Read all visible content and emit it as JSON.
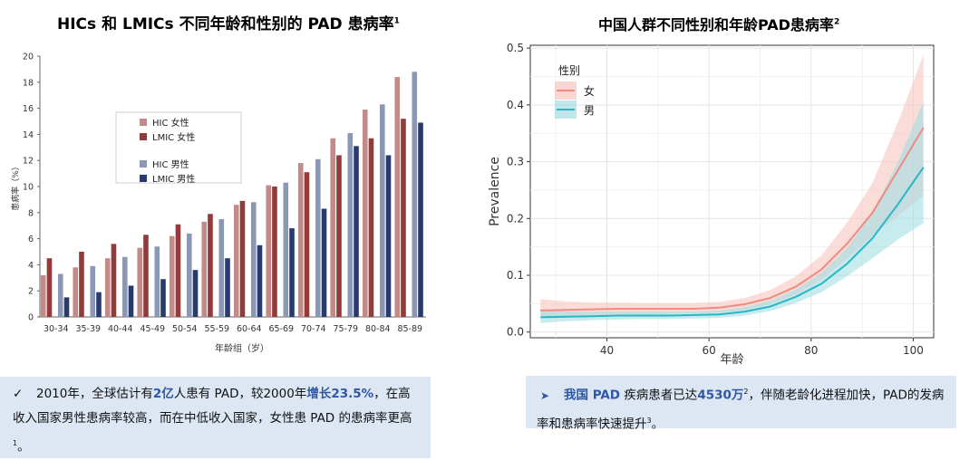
{
  "left_title": "HICs 和 LMICs 不同年龄和性别的 PAD 患病率",
  "left_title_sup": "1",
  "right_title": "中国人群不同性别和年龄PAD患病率",
  "right_title_sup": "2",
  "colors": {
    "hic_female": "#c48a87",
    "lmic_female": "#923b3a",
    "hic_male": "#8a97b5",
    "lmic_male": "#283b6e",
    "female_line": "#f08a82",
    "female_band": "#f6c4bf",
    "male_line": "#27b7c4",
    "male_band": "#a4dde3",
    "note_bg": "#dde7f4",
    "highlight": "#2e57a4"
  },
  "chart_data": [
    {
      "type": "bar",
      "xlabel": "年龄组（岁）",
      "ylabel": "患病率（%）",
      "ylim": [
        0,
        20
      ],
      "yticks": [
        "0",
        "2",
        "4",
        "6",
        "8",
        "10",
        "12",
        "14",
        "16",
        "18",
        "20"
      ],
      "legend_position": "center-left",
      "categories": [
        "30-34",
        "35-39",
        "40-44",
        "45-49",
        "50-54",
        "55-59",
        "60-64",
        "65-69",
        "70-74",
        "75-79",
        "80-84",
        "85-89"
      ],
      "series": [
        {
          "name": "HIC 女性",
          "color": "#c48a87",
          "values": [
            3.2,
            3.8,
            4.5,
            5.3,
            6.2,
            7.3,
            8.6,
            10.1,
            11.8,
            13.7,
            15.9,
            18.4
          ]
        },
        {
          "name": "LMIC 女性",
          "color": "#923b3a",
          "values": [
            4.5,
            5.0,
            5.6,
            6.3,
            7.1,
            7.9,
            8.9,
            10.0,
            11.1,
            12.4,
            13.7,
            15.2
          ]
        },
        {
          "name": "HIC 男性",
          "color": "#8a97b5",
          "values": [
            3.3,
            3.9,
            4.6,
            5.4,
            6.4,
            7.5,
            8.8,
            10.3,
            12.1,
            14.1,
            16.3,
            18.8
          ]
        },
        {
          "name": "LMIC 男性",
          "color": "#283b6e",
          "values": [
            1.5,
            1.9,
            2.4,
            2.9,
            3.6,
            4.5,
            5.5,
            6.8,
            8.3,
            13.1,
            12.4,
            14.9
          ]
        }
      ]
    },
    {
      "type": "line",
      "xlabel": "年龄",
      "ylabel": "Prevalence",
      "xlim": [
        25,
        104
      ],
      "ylim": [
        -0.01,
        0.505
      ],
      "xticks": [
        "40",
        "60",
        "80",
        "100"
      ],
      "yticks": [
        "0.0",
        "0.1",
        "0.2",
        "0.3",
        "0.4",
        "0.5"
      ],
      "grid": true,
      "legend_title": "性别",
      "legend_position": "top-left",
      "x": [
        27,
        32,
        37,
        42,
        47,
        52,
        57,
        62,
        67,
        72,
        77,
        82,
        87,
        92,
        97,
        102
      ],
      "series": [
        {
          "name": "女",
          "color": "#f08a82",
          "band_color": "#f6c4bf",
          "values": [
            0.038,
            0.039,
            0.04,
            0.041,
            0.041,
            0.041,
            0.041,
            0.043,
            0.049,
            0.06,
            0.08,
            0.11,
            0.155,
            0.21,
            0.285,
            0.36
          ],
          "lower": [
            0.025,
            0.028,
            0.03,
            0.031,
            0.032,
            0.032,
            0.033,
            0.034,
            0.039,
            0.049,
            0.066,
            0.092,
            0.128,
            0.17,
            0.205,
            0.24
          ],
          "upper": [
            0.058,
            0.054,
            0.052,
            0.052,
            0.051,
            0.051,
            0.051,
            0.053,
            0.06,
            0.074,
            0.098,
            0.135,
            0.192,
            0.262,
            0.37,
            0.488
          ]
        },
        {
          "name": "男",
          "color": "#27b7c4",
          "band_color": "#a4dde3",
          "values": [
            0.026,
            0.027,
            0.028,
            0.029,
            0.029,
            0.029,
            0.03,
            0.031,
            0.036,
            0.045,
            0.062,
            0.085,
            0.12,
            0.165,
            0.225,
            0.29
          ],
          "lower": [
            0.016,
            0.019,
            0.021,
            0.022,
            0.023,
            0.023,
            0.024,
            0.025,
            0.029,
            0.037,
            0.051,
            0.07,
            0.098,
            0.13,
            0.163,
            0.192
          ],
          "upper": [
            0.04,
            0.037,
            0.036,
            0.036,
            0.036,
            0.036,
            0.036,
            0.038,
            0.044,
            0.055,
            0.075,
            0.104,
            0.148,
            0.21,
            0.3,
            0.405
          ]
        }
      ]
    }
  ],
  "left_note": {
    "bullet": "✓",
    "t1": "2010年，全球估计有",
    "h1": "2亿",
    "t2": "人患有 PAD，较2000年",
    "h2": "增长23.5%",
    "t3": "，在高收入国家男性患病率较高，而在中低收入国家，女性患 PAD 的患病率更高",
    "sup": "1",
    "t4": "。"
  },
  "right_note": {
    "bullet": "➤",
    "h1": "我国 PAD",
    "t1": " 疾病患者已达",
    "h2": "4530万",
    "sup1": "2",
    "t2": "，伴随老龄化进程加快，PAD的发病率和患病率快速提升",
    "sup2": "3",
    "t3": "。"
  }
}
